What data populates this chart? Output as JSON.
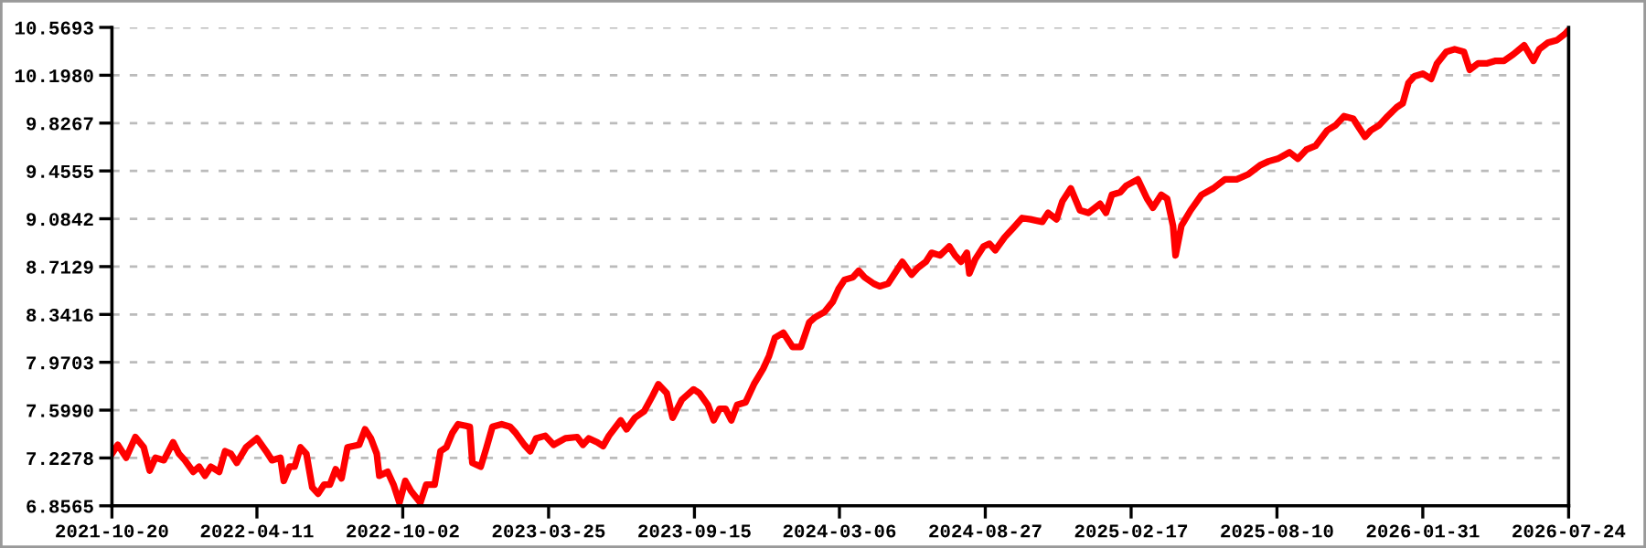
{
  "chart_data": {
    "type": "line",
    "x": [
      "2021-10-20",
      "2021-10-27",
      "2021-11-06",
      "2021-11-17",
      "2021-11-27",
      "2021-12-04",
      "2021-12-11",
      "2021-12-21",
      "2022-01-01",
      "2022-01-08",
      "2022-01-15",
      "2022-01-25",
      "2022-02-01",
      "2022-02-08",
      "2022-02-15",
      "2022-02-25",
      "2022-03-04",
      "2022-03-11",
      "2022-03-18",
      "2022-03-29",
      "2022-04-11",
      "2022-04-22",
      "2022-04-29",
      "2022-05-09",
      "2022-05-13",
      "2022-05-20",
      "2022-05-26",
      "2022-06-02",
      "2022-06-09",
      "2022-06-16",
      "2022-06-23",
      "2022-06-30",
      "2022-07-07",
      "2022-07-14",
      "2022-07-21",
      "2022-07-28",
      "2022-08-11",
      "2022-08-18",
      "2022-08-25",
      "2022-09-01",
      "2022-09-04",
      "2022-09-14",
      "2022-09-21",
      "2022-09-28",
      "2022-10-05",
      "2022-10-12",
      "2022-10-23",
      "2022-10-30",
      "2022-11-09",
      "2022-11-16",
      "2022-11-23",
      "2022-11-30",
      "2022-12-07",
      "2022-12-21",
      "2022-12-24",
      "2023-01-03",
      "2023-01-10",
      "2023-01-17",
      "2023-01-28",
      "2023-02-07",
      "2023-02-14",
      "2023-02-24",
      "2023-03-03",
      "2023-03-10",
      "2023-03-21",
      "2023-03-31",
      "2023-04-14",
      "2023-04-28",
      "2023-05-05",
      "2023-05-12",
      "2023-05-22",
      "2023-05-29",
      "2023-06-05",
      "2023-06-19",
      "2023-06-26",
      "2023-07-06",
      "2023-07-17",
      "2023-07-27",
      "2023-08-03",
      "2023-08-13",
      "2023-08-20",
      "2023-08-31",
      "2023-09-14",
      "2023-09-21",
      "2023-10-01",
      "2023-10-08",
      "2023-10-15",
      "2023-10-22",
      "2023-10-29",
      "2023-11-05",
      "2023-11-15",
      "2023-11-25",
      "2023-12-06",
      "2023-12-13",
      "2023-12-20",
      "2023-12-30",
      "2024-01-10",
      "2024-01-20",
      "2024-01-30",
      "2024-02-06",
      "2024-02-17",
      "2024-02-27",
      "2024-03-05",
      "2024-03-12",
      "2024-03-22",
      "2024-03-29",
      "2024-04-05",
      "2024-04-16",
      "2024-04-23",
      "2024-05-03",
      "2024-05-10",
      "2024-05-20",
      "2024-05-31",
      "2024-06-07",
      "2024-06-17",
      "2024-06-24",
      "2024-07-04",
      "2024-07-15",
      "2024-07-22",
      "2024-07-29",
      "2024-08-05",
      "2024-08-08",
      "2024-08-15",
      "2024-08-25",
      "2024-09-01",
      "2024-09-08",
      "2024-09-19",
      "2024-09-29",
      "2024-10-10",
      "2024-10-20",
      "2024-11-03",
      "2024-11-10",
      "2024-11-20",
      "2024-11-27",
      "2024-12-04",
      "2024-12-07",
      "2024-12-18",
      "2024-12-28",
      "2025-01-11",
      "2025-01-18",
      "2025-01-25",
      "2025-02-04",
      "2025-02-11",
      "2025-02-25",
      "2025-03-08",
      "2025-03-15",
      "2025-03-25",
      "2025-04-01",
      "2025-04-08",
      "2025-04-11",
      "2025-04-18",
      "2025-04-29",
      "2025-05-12",
      "2025-05-26",
      "2025-06-09",
      "2025-06-23",
      "2025-07-07",
      "2025-07-21",
      "2025-07-31",
      "2025-08-11",
      "2025-08-25",
      "2025-09-04",
      "2025-09-14",
      "2025-09-25",
      "2025-10-09",
      "2025-10-19",
      "2025-10-29",
      "2025-11-09",
      "2025-11-16",
      "2025-11-23",
      "2025-11-30",
      "2025-12-10",
      "2025-12-20",
      "2025-12-31",
      "2026-01-07",
      "2026-01-14",
      "2026-01-21",
      "2026-01-31",
      "2026-02-10",
      "2026-02-17",
      "2026-02-28",
      "2026-03-10",
      "2026-03-21",
      "2026-03-28",
      "2026-04-07",
      "2026-04-17",
      "2026-04-28",
      "2026-05-08",
      "2026-05-19",
      "2026-06-01",
      "2026-06-12",
      "2026-06-19",
      "2026-06-29",
      "2026-07-10",
      "2026-07-20",
      "2026-07-24"
    ],
    "series": [
      {
        "color": "#ff0000",
        "values": [
          7.26,
          7.33,
          7.23,
          7.39,
          7.31,
          7.13,
          7.23,
          7.21,
          7.35,
          7.26,
          7.21,
          7.12,
          7.16,
          7.09,
          7.16,
          7.12,
          7.28,
          7.26,
          7.19,
          7.31,
          7.38,
          7.28,
          7.21,
          7.23,
          7.05,
          7.16,
          7.16,
          7.31,
          7.26,
          7.0,
          6.95,
          7.02,
          7.02,
          7.14,
          7.07,
          7.31,
          7.33,
          7.45,
          7.38,
          7.26,
          7.09,
          7.12,
          7.02,
          6.88,
          7.05,
          6.97,
          6.88,
          7.02,
          7.02,
          7.28,
          7.31,
          7.42,
          7.49,
          7.47,
          7.19,
          7.16,
          7.31,
          7.47,
          7.49,
          7.47,
          7.42,
          7.33,
          7.28,
          7.38,
          7.4,
          7.33,
          7.38,
          7.39,
          7.33,
          7.38,
          7.35,
          7.32,
          7.4,
          7.52,
          7.45,
          7.54,
          7.59,
          7.71,
          7.8,
          7.73,
          7.54,
          7.68,
          7.76,
          7.73,
          7.64,
          7.52,
          7.61,
          7.61,
          7.52,
          7.64,
          7.66,
          7.8,
          7.92,
          8.02,
          8.16,
          8.2,
          8.09,
          8.09,
          8.28,
          8.32,
          8.36,
          8.44,
          8.54,
          8.61,
          8.63,
          8.68,
          8.63,
          8.58,
          8.56,
          8.58,
          8.65,
          8.75,
          8.65,
          8.7,
          8.75,
          8.82,
          8.8,
          8.87,
          8.8,
          8.75,
          8.82,
          8.66,
          8.77,
          8.87,
          8.89,
          8.84,
          8.94,
          9.01,
          9.09,
          9.08,
          9.06,
          9.13,
          9.08,
          9.22,
          9.29,
          9.32,
          9.15,
          9.13,
          9.2,
          9.13,
          9.27,
          9.29,
          9.34,
          9.39,
          9.24,
          9.17,
          9.27,
          9.24,
          9.03,
          8.8,
          9.03,
          9.15,
          9.27,
          9.32,
          9.39,
          9.39,
          9.43,
          9.5,
          9.53,
          9.55,
          9.6,
          9.55,
          9.62,
          9.65,
          9.77,
          9.81,
          9.88,
          9.86,
          9.79,
          9.72,
          9.77,
          9.81,
          9.88,
          9.95,
          9.98,
          10.14,
          10.19,
          10.21,
          10.17,
          10.29,
          10.38,
          10.4,
          10.38,
          10.24,
          10.29,
          10.29,
          10.31,
          10.31,
          10.36,
          10.43,
          10.31,
          10.4,
          10.45,
          10.47,
          10.52,
          10.55
        ]
      }
    ],
    "xlim": [
      "2021-10-20",
      "2026-07-24"
    ],
    "xticks": [
      "2021-10-20",
      "2022-04-11",
      "2022-10-02",
      "2023-03-25",
      "2023-09-15",
      "2024-03-06",
      "2024-08-27",
      "2025-02-17",
      "2025-08-10",
      "2026-01-31",
      "2026-07-24"
    ],
    "ylim": [
      6.8565,
      10.5693
    ],
    "yticks": [
      {
        "value": 6.8565,
        "label": "6.8565"
      },
      {
        "value": 7.2278,
        "label": "7.2278"
      },
      {
        "value": 7.599,
        "label": "7.5990"
      },
      {
        "value": 7.9703,
        "label": "7.9703"
      },
      {
        "value": 8.3416,
        "label": "8.3416"
      },
      {
        "value": 8.7129,
        "label": "8.7129"
      },
      {
        "value": 9.0842,
        "label": "9.0842"
      },
      {
        "value": 9.4555,
        "label": "9.4555"
      },
      {
        "value": 9.8267,
        "label": "9.8267"
      },
      {
        "value": 10.198,
        "label": "10.1980"
      },
      {
        "value": 10.5693,
        "label": "10.5693"
      }
    ],
    "grid": "y",
    "line_style": "solid",
    "marker": "none"
  }
}
